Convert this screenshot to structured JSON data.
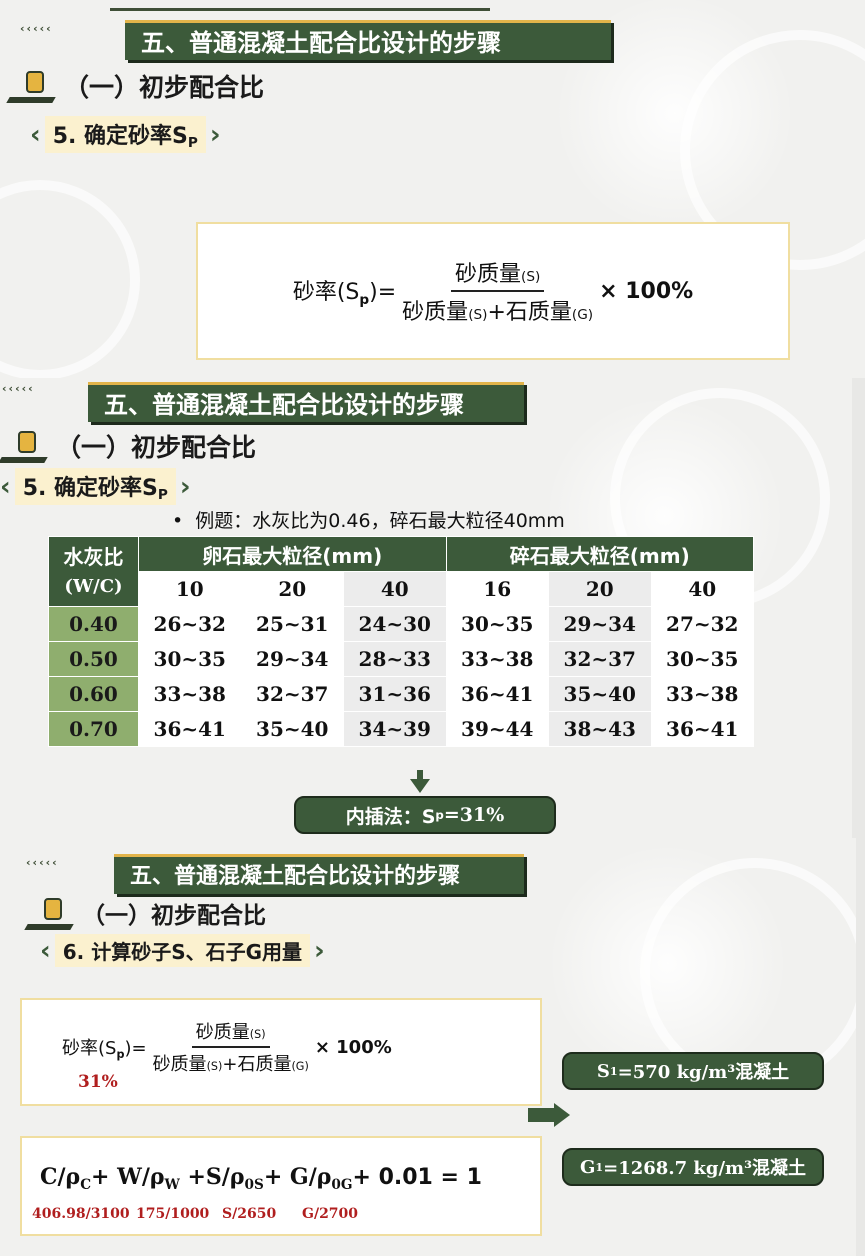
{
  "slide1": {
    "title": "五、普通混凝土配合比设计的步骤",
    "subtitle": "（一）初步配合比",
    "section": "5. 确定砂率S",
    "section_sub": "P",
    "formula": {
      "lhs": "砂率(S",
      "lhs_sub": "p",
      "lhs_end": ")=",
      "num": "砂质量",
      "num_sub": "(S)",
      "den_a": "砂质量",
      "den_a_sub": "(S)",
      "den_plus": "+石质量",
      "den_b_sub": "(G)",
      "times": "× 100%"
    }
  },
  "slide2": {
    "title": "五、普通混凝土配合比设计的步骤",
    "subtitle": "（一）初步配合比",
    "section": "5. 确定砂率S",
    "section_sub": "P",
    "example": "例题：水灰比为0.46，碎石最大粒径40mm",
    "table": {
      "wc_head": "水灰比",
      "wc_head2": "(W/C)",
      "group1": "卵石最大粒径(mm)",
      "group2": "碎石最大粒径(mm)",
      "sizes": [
        "10",
        "20",
        "40",
        "16",
        "20",
        "40"
      ],
      "rows": [
        {
          "wc": "0.40",
          "vals": [
            "26~32",
            "25~31",
            "24~30",
            "30~35",
            "29~34",
            "27~32"
          ]
        },
        {
          "wc": "0.50",
          "vals": [
            "30~35",
            "29~34",
            "28~33",
            "33~38",
            "32~37",
            "30~35"
          ]
        },
        {
          "wc": "0.60",
          "vals": [
            "33~38",
            "32~37",
            "31~36",
            "36~41",
            "35~40",
            "33~38"
          ]
        },
        {
          "wc": "0.70",
          "vals": [
            "36~41",
            "35~40",
            "34~39",
            "39~44",
            "38~43",
            "36~41"
          ]
        }
      ]
    },
    "result_label": "内插法：S",
    "result_sub": "p",
    "result_val": "=31%"
  },
  "slide3": {
    "title": "五、普通混凝土配合比设计的步骤",
    "subtitle": "（一）初步配合比",
    "section": "6. 计算砂子S、石子G用量",
    "formula": {
      "lhs": "砂率(S",
      "lhs_sub": "p",
      "lhs_end": ")=",
      "num": "砂质量",
      "num_sub": "(S)",
      "den_a": "砂质量",
      "den_a_sub": "(S)",
      "den_plus": "+石质量",
      "den_b_sub": "(G)",
      "times": "× 100%",
      "note": "31%"
    },
    "volume": {
      "c": "C/ρ",
      "c_sub": "C",
      "w": "+ W/ρ",
      "w_sub": "W",
      "s": " +S/ρ",
      "s_sub": "0S",
      "g": "+ G/ρ",
      "g_sub": "0G",
      "end": "+ 0.01 = 1",
      "notes": [
        "406.98/3100",
        "175/1000",
        "S/2650",
        "G/2700"
      ]
    },
    "s1_label": "S",
    "s1_sub": "1",
    "s1_val": "=570 kg/m³混凝土",
    "g1_label": "G",
    "g1_sub": "1",
    "g1_val": "=1268.7 kg/m³混凝土"
  },
  "chevrons": "‹‹‹‹‹",
  "colors": {
    "accent": "#3c5a3a",
    "highlight": "#e2b44a",
    "note_red": "#b01e1e"
  }
}
